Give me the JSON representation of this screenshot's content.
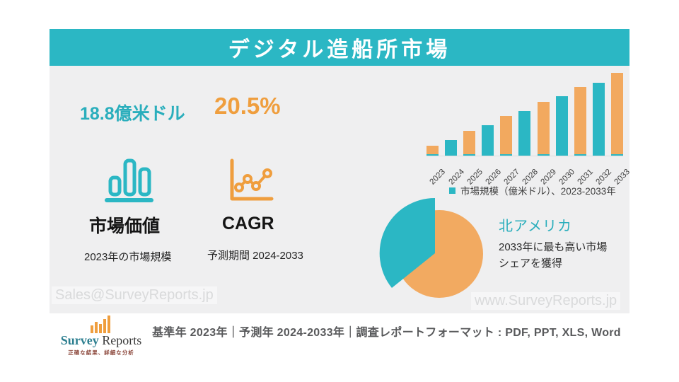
{
  "header": {
    "title": "デジタル造船所市場"
  },
  "colors": {
    "teal": "#2bb7c4",
    "teal_text": "#2aaebc",
    "orange": "#f2a95f",
    "orange_strong": "#ef9e3e",
    "panel_bg": "#efeff0",
    "logo_teal": "#2d7f90"
  },
  "stats": {
    "market_value": "18.8億米ドル",
    "market_value_label": "市場価値",
    "market_value_sub": "2023年の市場規模",
    "cagr_value": "20.5%",
    "cagr_label": "CAGR",
    "cagr_sub": "予測期間 2024-2033"
  },
  "icons": {
    "bar_chart_icon": "outlined teal column chart with underline",
    "line_chart_icon": "orange axis with zigzag line and node dots"
  },
  "chart_data": [
    {
      "type": "bar",
      "legend": "市場規模（億米ドル）、2023-2033年",
      "categories": [
        "2023",
        "2024",
        "2025",
        "2026",
        "2027",
        "2028",
        "2029",
        "2030",
        "2031",
        "2032",
        "2033"
      ],
      "values_relative_pct": [
        10,
        19,
        29,
        37,
        47,
        55,
        64,
        73,
        83,
        90,
        100
      ],
      "note": "no numeric y-axis shown; bars rise steadily left to right",
      "bar_color_odd_years": "#f2a95f",
      "bar_color_even_years": "#2bb7c4",
      "legend_position": "below-right",
      "x_tick_rotation_deg": -45
    },
    {
      "type": "pie",
      "slices": [
        {
          "name": "北アメリカ",
          "approx_pct": 36,
          "color": "#2bb7c4",
          "exploded": true
        },
        {
          "name": "(unlabeled remainder)",
          "approx_pct": 64,
          "color": "#f2aa61",
          "exploded": false
        }
      ],
      "teal_slice_deg": 131
    }
  ],
  "region": {
    "name": "北アメリカ",
    "description": "2033年に最も高い市場\nシェアを獲得"
  },
  "watermarks": {
    "left": "Sales@SurveyReports.jp",
    "right": "www.SurveyReports.jp"
  },
  "footer": {
    "logo_word1": "Survey",
    "logo_word2": "Reports",
    "logo_tagline": "正確な結果、詳細な分析",
    "info": "基準年 2023年｜予測年 2024-2033年｜調査レポートフォーマット : PDF, PPT, XLS, Word"
  }
}
